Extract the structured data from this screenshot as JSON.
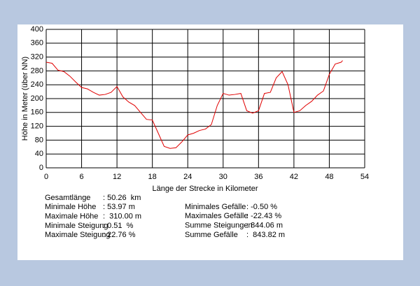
{
  "chart_data": {
    "type": "line",
    "xlabel": "Länge der Strecke in Kilometer",
    "ylabel": "Höhe in Meter (über NN)",
    "x": [
      0,
      1,
      2,
      3,
      4,
      5,
      6,
      7,
      8,
      9,
      10,
      11,
      12,
      13,
      14,
      15,
      16,
      17,
      18,
      19,
      20,
      21,
      22,
      23,
      24,
      25,
      26,
      27,
      28,
      29,
      30,
      31,
      32,
      33,
      34,
      35,
      36,
      37,
      38,
      39,
      40,
      41,
      42,
      43,
      44,
      45,
      46,
      47,
      48,
      49,
      50,
      50.26
    ],
    "series": [
      {
        "color": "#e00000",
        "values": [
          305,
          302,
          282,
          278,
          265,
          248,
          232,
          228,
          218,
          210,
          212,
          218,
          235,
          205,
          190,
          180,
          160,
          140,
          138,
          100,
          62,
          56,
          58,
          75,
          95,
          100,
          108,
          112,
          125,
          180,
          215,
          210,
          212,
          215,
          165,
          158,
          165,
          215,
          218,
          260,
          278,
          240,
          160,
          165,
          180,
          192,
          210,
          222,
          270,
          300,
          305,
          310
        ]
      }
    ],
    "xlim": [
      0,
      54
    ],
    "xticks": [
      0,
      6,
      12,
      18,
      24,
      30,
      36,
      42,
      48,
      54
    ],
    "ylim": [
      0,
      400
    ],
    "yticks": [
      0,
      40,
      80,
      120,
      160,
      200,
      240,
      280,
      320,
      360,
      400
    ],
    "grid": true
  },
  "stats_left": [
    {
      "label": "Gesamtlänge",
      "value": ": 50.26  km"
    },
    {
      "label": "Minimale Höhe",
      "value": ": 53.97 m"
    },
    {
      "label": "Maximale Höhe",
      "value": ":  310.00 m"
    },
    {
      "label": "Minimale Steigung",
      "value": ": 0.51  %"
    },
    {
      "label": "Maximale Steigung",
      "value": ": 22.76 %"
    }
  ],
  "stats_right": [
    {
      "label": "Minimales Gefälle",
      "value": ": -0.50 %"
    },
    {
      "label": "Maximales Gefälle",
      "value": ": -22.43 %"
    },
    {
      "label": "Summe Steigungen",
      "value": ": 844.06 m"
    },
    {
      "label": "Summe Gefälle",
      "value": ":  843.82 m"
    }
  ]
}
